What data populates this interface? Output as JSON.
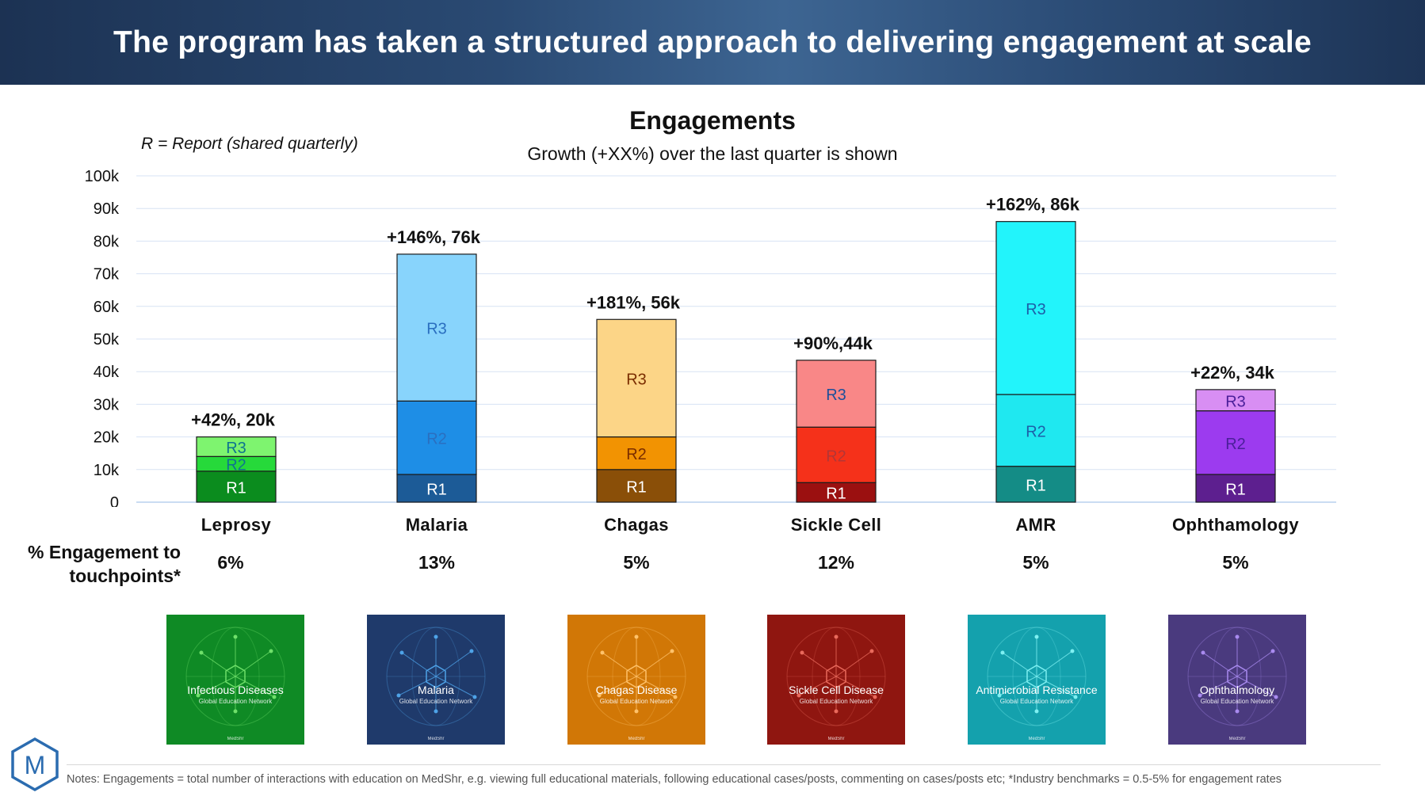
{
  "header": {
    "title": "The program has taken a structured approach to delivering engagement at scale"
  },
  "report_note": "R = Report (shared quarterly)",
  "row_label": [
    "% Engagement to",
    "touchpoints*"
  ],
  "chart_data": {
    "type": "bar",
    "stacked": true,
    "title": "Engagements",
    "subtitle": "Growth (+XX%) over the last quarter is shown",
    "xlabel": "",
    "ylabel": "",
    "ylim": [
      0,
      100000
    ],
    "y_ticks": [
      "0",
      "10k",
      "20k",
      "30k",
      "40k",
      "50k",
      "60k",
      "70k",
      "80k",
      "90k",
      "100k"
    ],
    "grid": true,
    "categories": [
      "Leprosy",
      "Malaria",
      "Chagas",
      "Sickle Cell",
      "AMR",
      "Ophthamology"
    ],
    "series": [
      {
        "name": "R1",
        "values": [
          9500,
          8500,
          10000,
          6000,
          11000,
          8500
        ]
      },
      {
        "name": "R2",
        "values": [
          4500,
          22500,
          10000,
          17000,
          22000,
          19500
        ]
      },
      {
        "name": "R3",
        "values": [
          6000,
          45000,
          36000,
          20500,
          53000,
          6500
        ]
      }
    ],
    "segment_colors": [
      [
        "#0b8c1e",
        "#1c5b97",
        "#8a4f08",
        "#9b1010",
        "#148c86",
        "#5d1f8f"
      ],
      [
        "#26d93a",
        "#1e8ee6",
        "#f29302",
        "#f5311a",
        "#1fe8f0",
        "#9c3bef"
      ],
      [
        "#7ef46f",
        "#88d4fc",
        "#fcd587",
        "#f98787",
        "#22f4fb",
        "#d88ef3"
      ]
    ],
    "segment_text_colors": [
      [
        "#ffffff",
        "#ffffff",
        "#ffffff",
        "#ffffff",
        "#ffffff",
        "#ffffff"
      ],
      [
        "#0e7490",
        "#2a6fc0",
        "#7a2d00",
        "#b33636",
        "#1d5fa8",
        "#4b1f9a"
      ],
      [
        "#0e7490",
        "#2a6fc0",
        "#7a2d00",
        "#1d4f9a",
        "#1d5fa8",
        "#4b1f9a"
      ]
    ],
    "annotations": [
      "+42%, 20k",
      "+146%, 76k",
      "+181%, 56k",
      "+90%,44k",
      "+162%, 86k",
      "+22%, 34k"
    ],
    "engagement_pct": [
      "6%",
      "13%",
      "5%",
      "12%",
      "5%",
      "5%"
    ]
  },
  "cards": [
    {
      "title": "Infectious Diseases",
      "sub": "Global Education Network",
      "brand": "MedShr",
      "color": "#0f8a25",
      "accent": "#6fe06a"
    },
    {
      "title": "Malaria",
      "sub": "Global Education Network",
      "brand": "MedShr",
      "color": "#1f3a6b",
      "accent": "#4ea3e8"
    },
    {
      "title": "Chagas Disease",
      "sub": "Global Education Network",
      "brand": "MedShr",
      "color": "#d17706",
      "accent": "#ffc26b"
    },
    {
      "title": "Sickle Cell Disease",
      "sub": "Global Education Network",
      "brand": "MedShr",
      "color": "#8f1610",
      "accent": "#e96a5c"
    },
    {
      "title": "Antimicrobial Resistance",
      "sub": "Global Education Network",
      "brand": "MedShr",
      "color": "#14a1ad",
      "accent": "#7ff0f2"
    },
    {
      "title": "Ophthalmology",
      "sub": "Global Education Network",
      "brand": "MedShr",
      "color": "#4a3a7e",
      "accent": "#a98bf0"
    }
  ],
  "logo": {
    "letter": "M",
    "color": "#2b6cb0"
  },
  "footer": {
    "notes": "Notes: Engagements = total number of interactions with education on MedShr, e.g. viewing full educational materials, following educational cases/posts, commenting on cases/posts etc; *Industry benchmarks = 0.5-5% for engagement rates"
  }
}
